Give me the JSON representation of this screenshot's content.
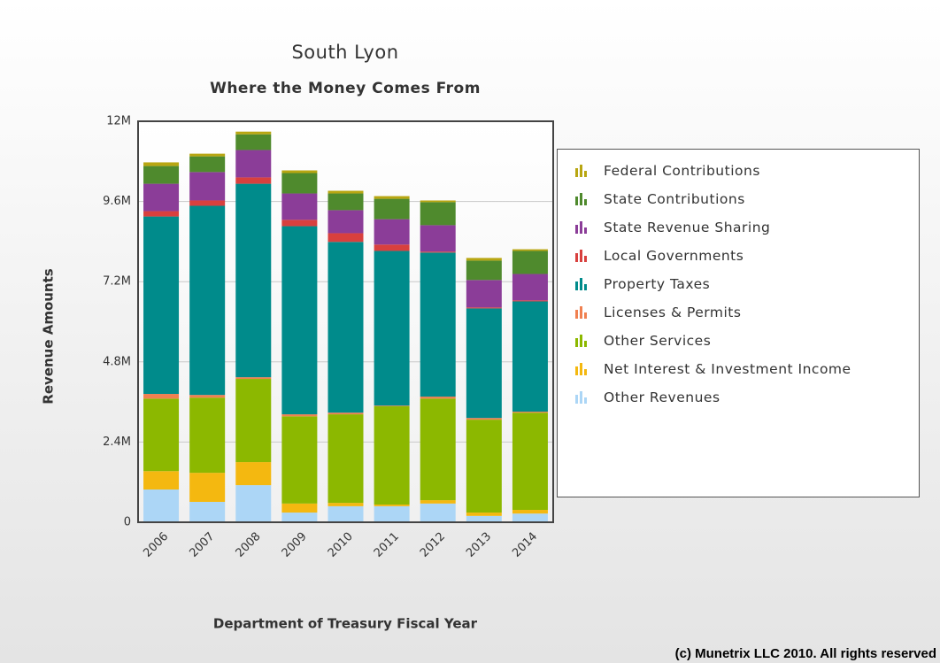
{
  "chart_data": {
    "type": "stacked_bar",
    "title": "South Lyon",
    "subtitle": "Where the Money Comes From",
    "x_label": "Department of Treasury Fiscal Year",
    "y_label": "Revenue Amounts",
    "footer": "(c) Munetrix LLC 2010. All rights reserved",
    "categories": [
      "2006",
      "2007",
      "2008",
      "2009",
      "2010",
      "2011",
      "2012",
      "2013",
      "2014"
    ],
    "ylim": [
      0,
      12000000
    ],
    "yticks": [
      0,
      {
        "value": 2400000,
        "label": "2.4M"
      },
      {
        "value": 4800000,
        "label": "4.8M"
      },
      {
        "value": 7200000,
        "label": "7.2M"
      },
      {
        "value": 9600000,
        "label": "9.6M"
      },
      {
        "value": 12000000,
        "label": "12M"
      }
    ],
    "grid": true,
    "legend": "right",
    "series": [
      {
        "name": "Federal Contributions",
        "color": "#b8a612",
        "values": [
          110000,
          80000,
          80000,
          80000,
          80000,
          80000,
          50000,
          80000,
          50000
        ]
      },
      {
        "name": "State Contributions",
        "color": "#4f8a2d",
        "values": [
          530000,
          470000,
          470000,
          610000,
          500000,
          610000,
          690000,
          580000,
          690000
        ]
      },
      {
        "name": "State Revenue Sharing",
        "color": "#8b3d98",
        "values": [
          820000,
          850000,
          820000,
          790000,
          690000,
          760000,
          790000,
          820000,
          790000
        ]
      },
      {
        "name": "Local Governments",
        "color": "#d8403e",
        "values": [
          160000,
          160000,
          190000,
          190000,
          260000,
          190000,
          30000,
          30000,
          30000
        ]
      },
      {
        "name": "Property Taxes",
        "color": "#008b8b",
        "values": [
          5310000,
          5660000,
          5790000,
          5630000,
          5110000,
          4630000,
          4310000,
          3280000,
          3300000
        ]
      },
      {
        "name": "Licenses & Permits",
        "color": "#f08050",
        "values": [
          140000,
          80000,
          50000,
          60000,
          50000,
          20000,
          60000,
          50000,
          30000
        ]
      },
      {
        "name": "Other Services",
        "color": "#8cb800",
        "values": [
          2170000,
          2250000,
          2490000,
          2610000,
          2650000,
          2940000,
          3040000,
          2780000,
          2910000
        ]
      },
      {
        "name": "Net Interest & Investment Income",
        "color": "#f4b810",
        "values": [
          550000,
          870000,
          690000,
          270000,
          100000,
          50000,
          100000,
          100000,
          110000
        ]
      },
      {
        "name": "Other Revenues",
        "color": "#acd6f6",
        "values": [
          980000,
          610000,
          1110000,
          290000,
          480000,
          480000,
          560000,
          190000,
          260000
        ]
      }
    ]
  }
}
